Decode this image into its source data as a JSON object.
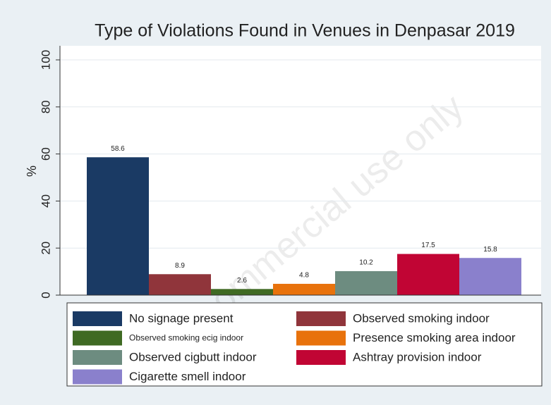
{
  "chart_data": {
    "type": "bar",
    "title": "Type of Violations Found in Venues in Denpasar 2019",
    "y_label": "%",
    "watermark": "commercial use only",
    "ylim": [
      0,
      100
    ],
    "yticks": [
      0,
      20,
      40,
      60,
      80,
      100
    ],
    "grid": true,
    "series": [
      {
        "name": "No signage present",
        "color": "#1a3a64",
        "values": [
          58.6
        ]
      },
      {
        "name": "Observed smoking indoor",
        "color": "#90353b",
        "values": [
          8.9
        ]
      },
      {
        "name": "Observed smoking ecig indoor",
        "color": "#3f6a23",
        "values": [
          2.6
        ]
      },
      {
        "name": "Presence smoking area indoor",
        "color": "#e8720c",
        "values": [
          4.8
        ]
      },
      {
        "name": "Observed cigbutt indoor",
        "color": "#6d8c80",
        "values": [
          10.2
        ]
      },
      {
        "name": "Ashtray provision indoor",
        "color": "#c10534",
        "values": [
          17.5
        ]
      },
      {
        "name": "Cigarette smell indoor",
        "color": "#8a80cc",
        "values": [
          15.8
        ]
      }
    ]
  }
}
